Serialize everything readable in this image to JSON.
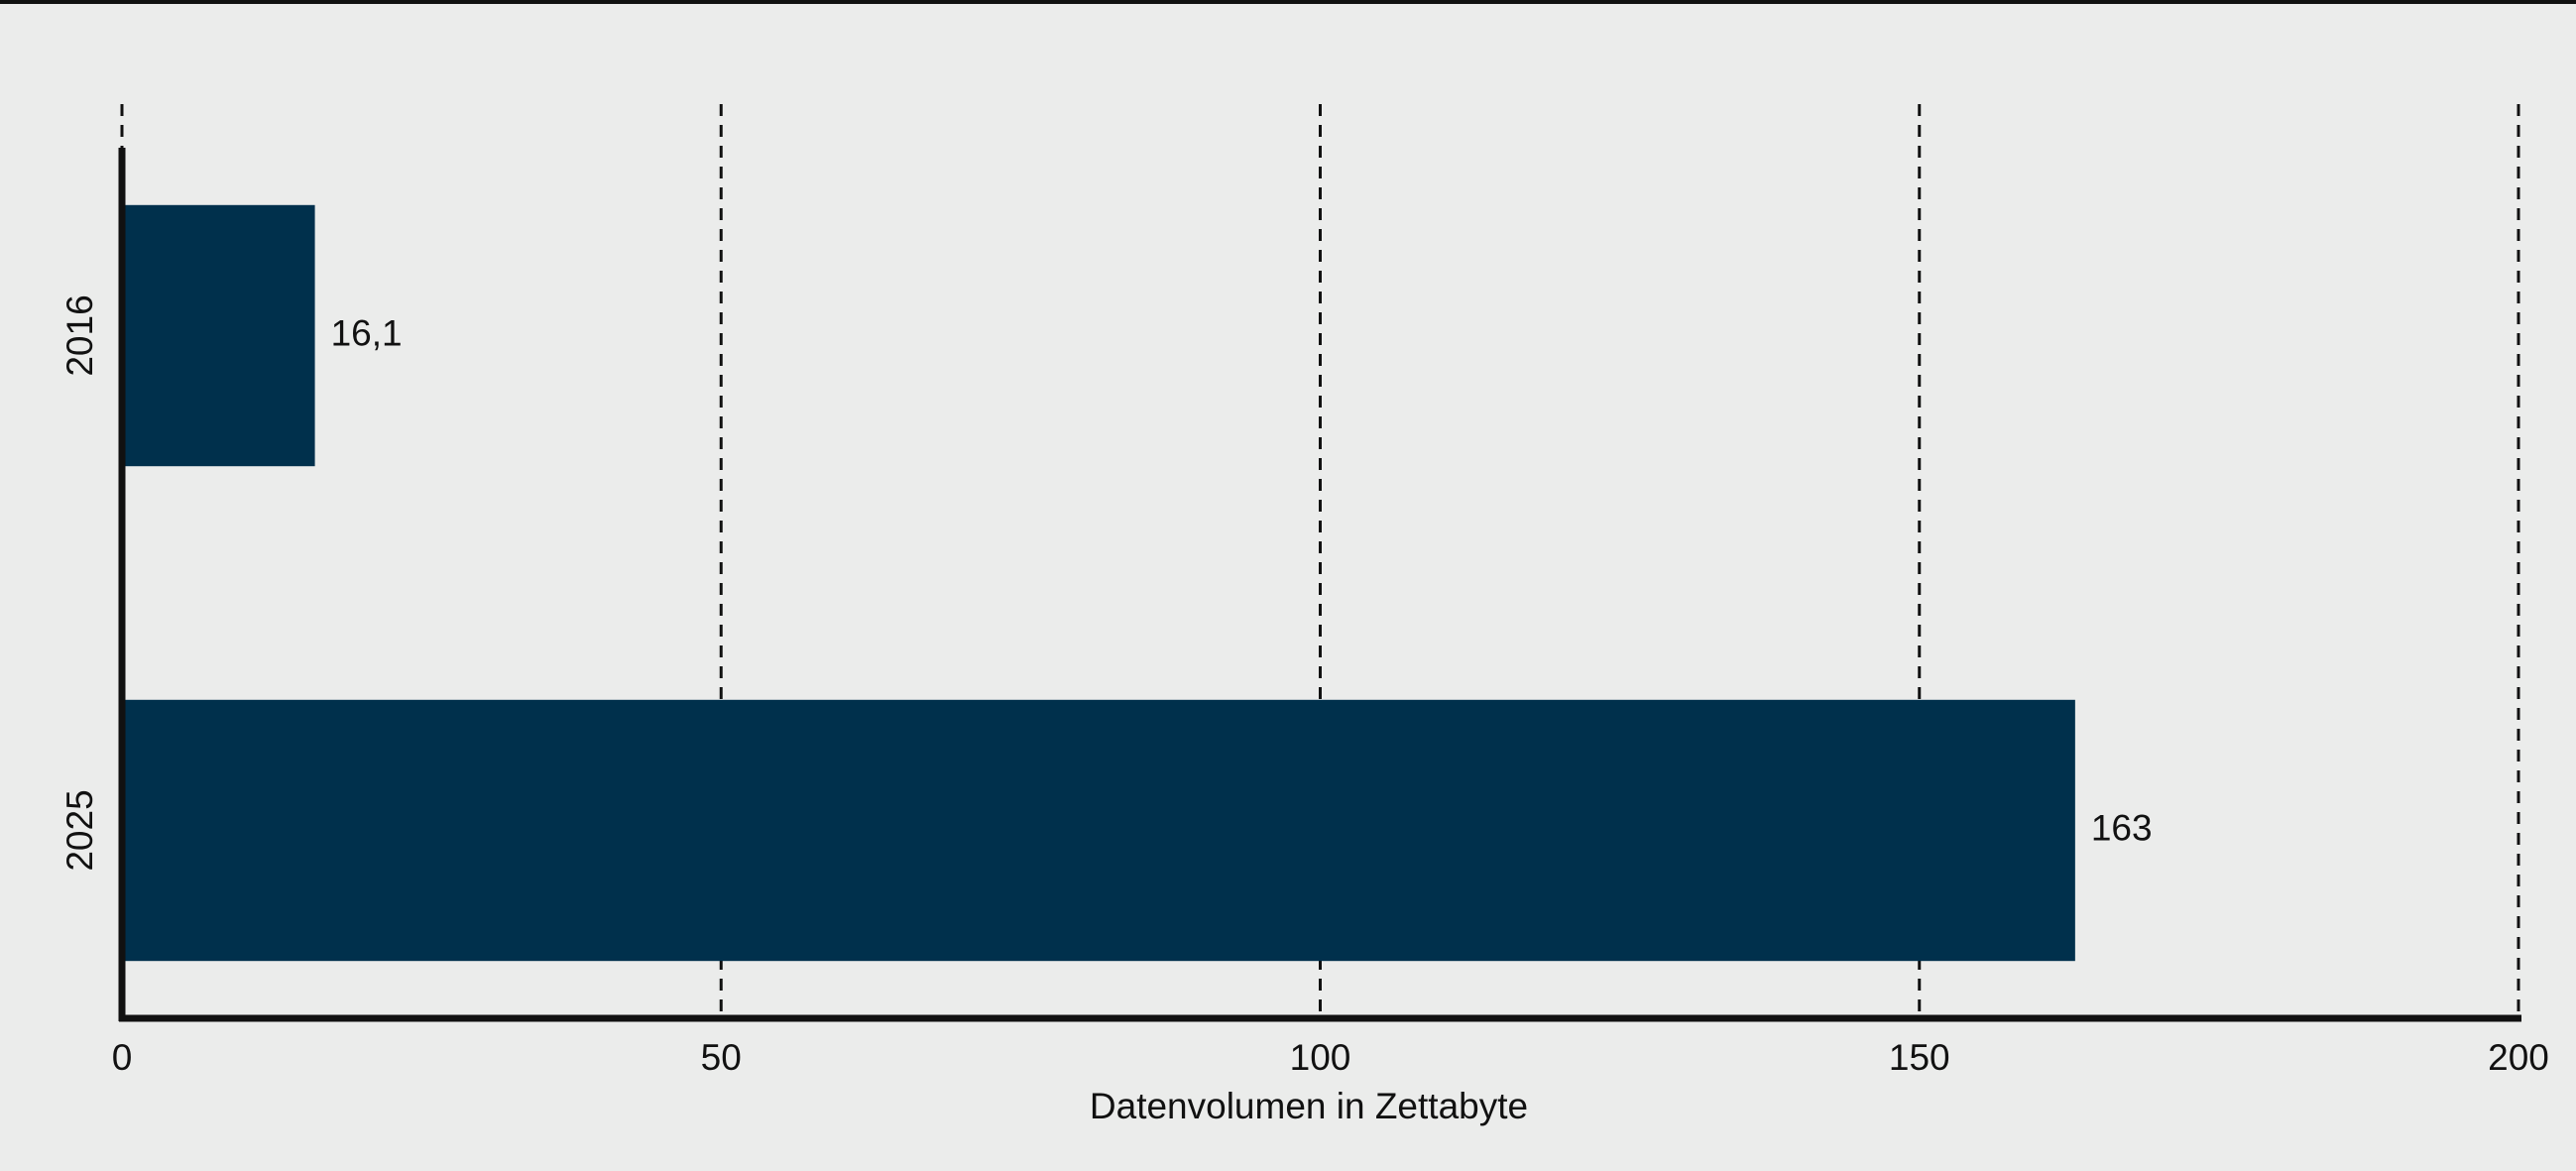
{
  "chart_data": {
    "type": "bar",
    "orientation": "horizontal",
    "x_label": "Datenvolumen in Zettabyte",
    "categories": [
      "2016",
      "2025"
    ],
    "values": [
      16.1,
      163
    ],
    "value_labels": [
      "16,1",
      "163"
    ],
    "color": "#00304c",
    "xlim": [
      0,
      200
    ],
    "xticks": [
      0,
      50,
      100,
      150,
      200
    ],
    "grid": true
  }
}
